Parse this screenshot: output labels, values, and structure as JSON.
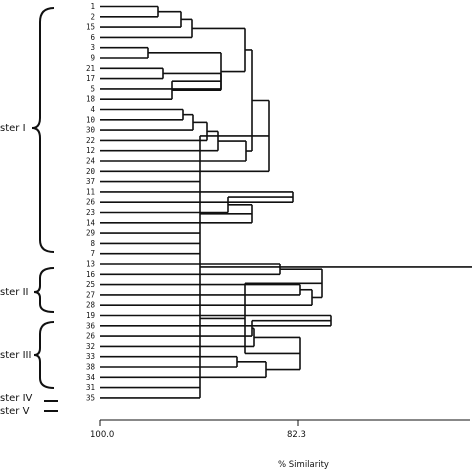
{
  "leaves": [
    "1",
    "2",
    "15",
    "6",
    "3",
    "9",
    "21",
    "17",
    "5",
    "18",
    "4",
    "10",
    "30",
    "22",
    "12",
    "24",
    "20",
    "37",
    "11",
    "26",
    "23",
    "14",
    "29",
    "8",
    "7",
    "13",
    "16",
    "25",
    "27",
    "28",
    "19",
    "36",
    "26",
    "32",
    "33",
    "38",
    "34",
    "31",
    "35"
  ],
  "clusters": [
    {
      "label": "ster I"
    },
    {
      "label": "ster II"
    },
    {
      "label": "ster III"
    },
    {
      "label": "ster IV"
    },
    {
      "label": "ster V"
    }
  ],
  "axis": {
    "tick_left": "100.0",
    "tick_mid": "82.3",
    "title": "% Similarity"
  },
  "tree": [
    [
      [
        [
          [
            [
              [
                "1",
                "2"
              ],
              "15"
            ],
            "6"
          ],
          [
            [
              "3",
              "9"
            ],
            [
              [
                [
                  "21",
                  "17"
                ],
                "5"
              ],
              "18"
            ]
          ]
        ],
        [
          [
            [
              [
                [
                  "4",
                  "10"
                ],
                "30"
              ],
              "22"
            ],
            "12"
          ],
          "24"
        ]
      ],
      "20"
    ],
    "37",
    [
      [
        [
          "11",
          "26"
        ],
        "23"
      ],
      "14"
    ],
    "29",
    "8",
    "7",
    [
      [
        [
          "13",
          "16"
        ],
        [
          [
            "25",
            "27"
          ],
          "28"
        ]
      ],
      [
        [
          [
            [
              "19",
              "36"
            ],
            "26"
          ],
          "32"
        ],
        [
          [
            "33",
            "38"
          ],
          "34"
        ]
      ]
    ],
    "31",
    "35"
  ],
  "note": "tree is read as nested merges"
}
